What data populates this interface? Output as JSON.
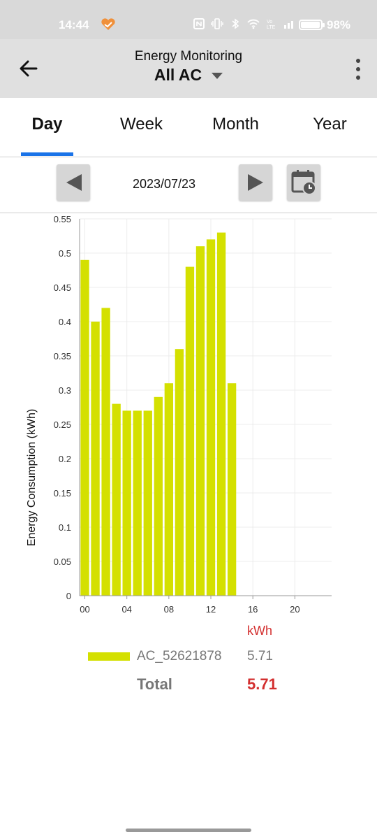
{
  "status_bar": {
    "time": "14:44",
    "battery_text": "98%",
    "battery_level": 0.98,
    "icons": [
      "heart-icon",
      "nfc-icon",
      "vibrate-icon",
      "bluetooth-icon",
      "wifi-icon",
      "volte-icon",
      "signal-icon",
      "battery-icon"
    ]
  },
  "app_bar": {
    "title": "Energy Monitoring",
    "subtitle": "All AC",
    "back_icon": "arrow-left-icon",
    "menu_icon": "more-vertical-icon"
  },
  "tabs": [
    {
      "label": "Day",
      "active": true
    },
    {
      "label": "Week",
      "active": false
    },
    {
      "label": "Month",
      "active": false
    },
    {
      "label": "Year",
      "active": false
    }
  ],
  "date_nav": {
    "date": "2023/07/23",
    "prev_icon": "triangle-left-icon",
    "next_icon": "triangle-right-icon",
    "calendar_icon": "calendar-clock-icon"
  },
  "chart_data": {
    "type": "bar",
    "title": "",
    "xlabel": "",
    "ylabel": "Energy Consumption (kWh)",
    "ylim": [
      0,
      0.55
    ],
    "xlim": [
      -0.5,
      23.5
    ],
    "y_ticks": [
      "0",
      "0.05",
      "0.1",
      "0.15",
      "0.2",
      "0.25",
      "0.3",
      "0.35",
      "0.4",
      "0.45",
      "0.5",
      "0.55"
    ],
    "x_ticks": [
      {
        "value": 0,
        "label": "00"
      },
      {
        "value": 4,
        "label": "04"
      },
      {
        "value": 8,
        "label": "08"
      },
      {
        "value": 12,
        "label": "12"
      },
      {
        "value": 16,
        "label": "16"
      },
      {
        "value": 20,
        "label": "20"
      }
    ],
    "grid": true,
    "x": [
      0,
      1,
      2,
      3,
      4,
      5,
      6,
      7,
      8,
      9,
      10,
      11,
      12,
      13,
      14
    ],
    "values": [
      0.49,
      0.4,
      0.42,
      0.28,
      0.27,
      0.27,
      0.27,
      0.29,
      0.31,
      0.36,
      0.48,
      0.51,
      0.52,
      0.53,
      0.31
    ],
    "bar_color": "#d4e000"
  },
  "legend": {
    "unit": "kWh",
    "entries": [
      {
        "name": "AC_52621878",
        "value": "5.71",
        "color": "#d4e000"
      }
    ],
    "total_label": "Total",
    "total_value": "5.71"
  }
}
